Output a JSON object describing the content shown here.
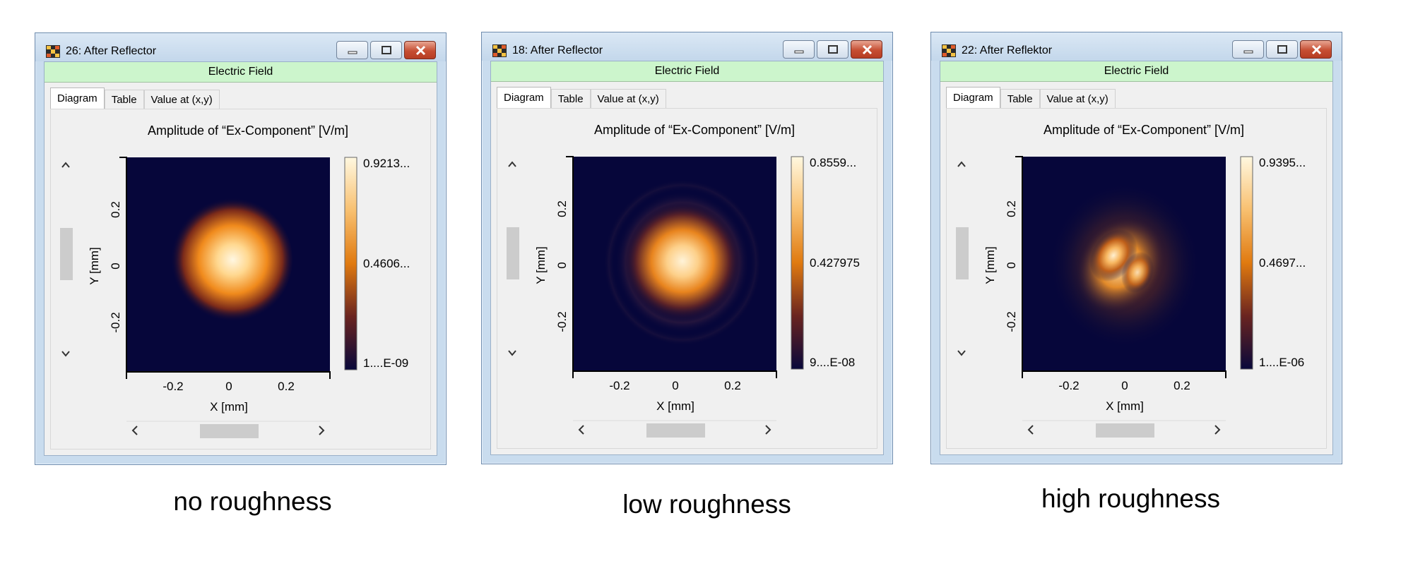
{
  "windows": [
    {
      "title": "26: After Reflector",
      "header": "Electric Field",
      "tabs": [
        "Diagram",
        "Table",
        "Value at (x,y)"
      ],
      "plot_title": "Amplitude of “Ex-Component”  [V/m]",
      "xlabel": "X [mm]",
      "ylabel": "Y [mm]",
      "xticks": [
        "-0.2",
        "0",
        "0.2"
      ],
      "yticks": [
        "0.2",
        "0",
        "-0.2"
      ],
      "colorbar": {
        "max": "0.9213...",
        "mid": "0.4606...",
        "min": "1....E-09"
      },
      "caption": "no roughness"
    },
    {
      "title": "18: After Reflector",
      "header": "Electric Field",
      "tabs": [
        "Diagram",
        "Table",
        "Value at (x,y)"
      ],
      "plot_title": "Amplitude of “Ex-Component”  [V/m]",
      "xlabel": "X [mm]",
      "ylabel": "Y [mm]",
      "xticks": [
        "-0.2",
        "0",
        "0.2"
      ],
      "yticks": [
        "0.2",
        "0",
        "-0.2"
      ],
      "colorbar": {
        "max": "0.8559...",
        "mid": "0.427975",
        "min": "9....E-08"
      },
      "caption": "low roughness"
    },
    {
      "title": "22: After Reflektor",
      "header": "Electric Field",
      "tabs": [
        "Diagram",
        "Table",
        "Value at (x,y)"
      ],
      "plot_title": "Amplitude of “Ex-Component”  [V/m]",
      "xlabel": "X [mm]",
      "ylabel": "Y [mm]",
      "xticks": [
        "-0.2",
        "0",
        "0.2"
      ],
      "yticks": [
        "0.2",
        "0",
        "-0.2"
      ],
      "colorbar": {
        "max": "0.9395...",
        "mid": "0.4697...",
        "min": "1....E-06"
      },
      "caption": "high roughness"
    }
  ],
  "colors": {
    "field_header": "#ccf5cc",
    "plot_background": "#06063a",
    "spot_core": "#fff7e0",
    "spot_mid": "#f08a1c",
    "colorbar_top": "#fff8e0",
    "colorbar_mid": "#e07a10",
    "colorbar_bottom": "#08083a"
  },
  "icons": {
    "scroll_up": "chevron-up-icon",
    "scroll_down": "chevron-down-icon",
    "scroll_left": "chevron-left-icon",
    "scroll_right": "chevron-right-icon",
    "minimize": "minimize-icon",
    "maximize": "maximize-icon",
    "close": "close-icon"
  }
}
